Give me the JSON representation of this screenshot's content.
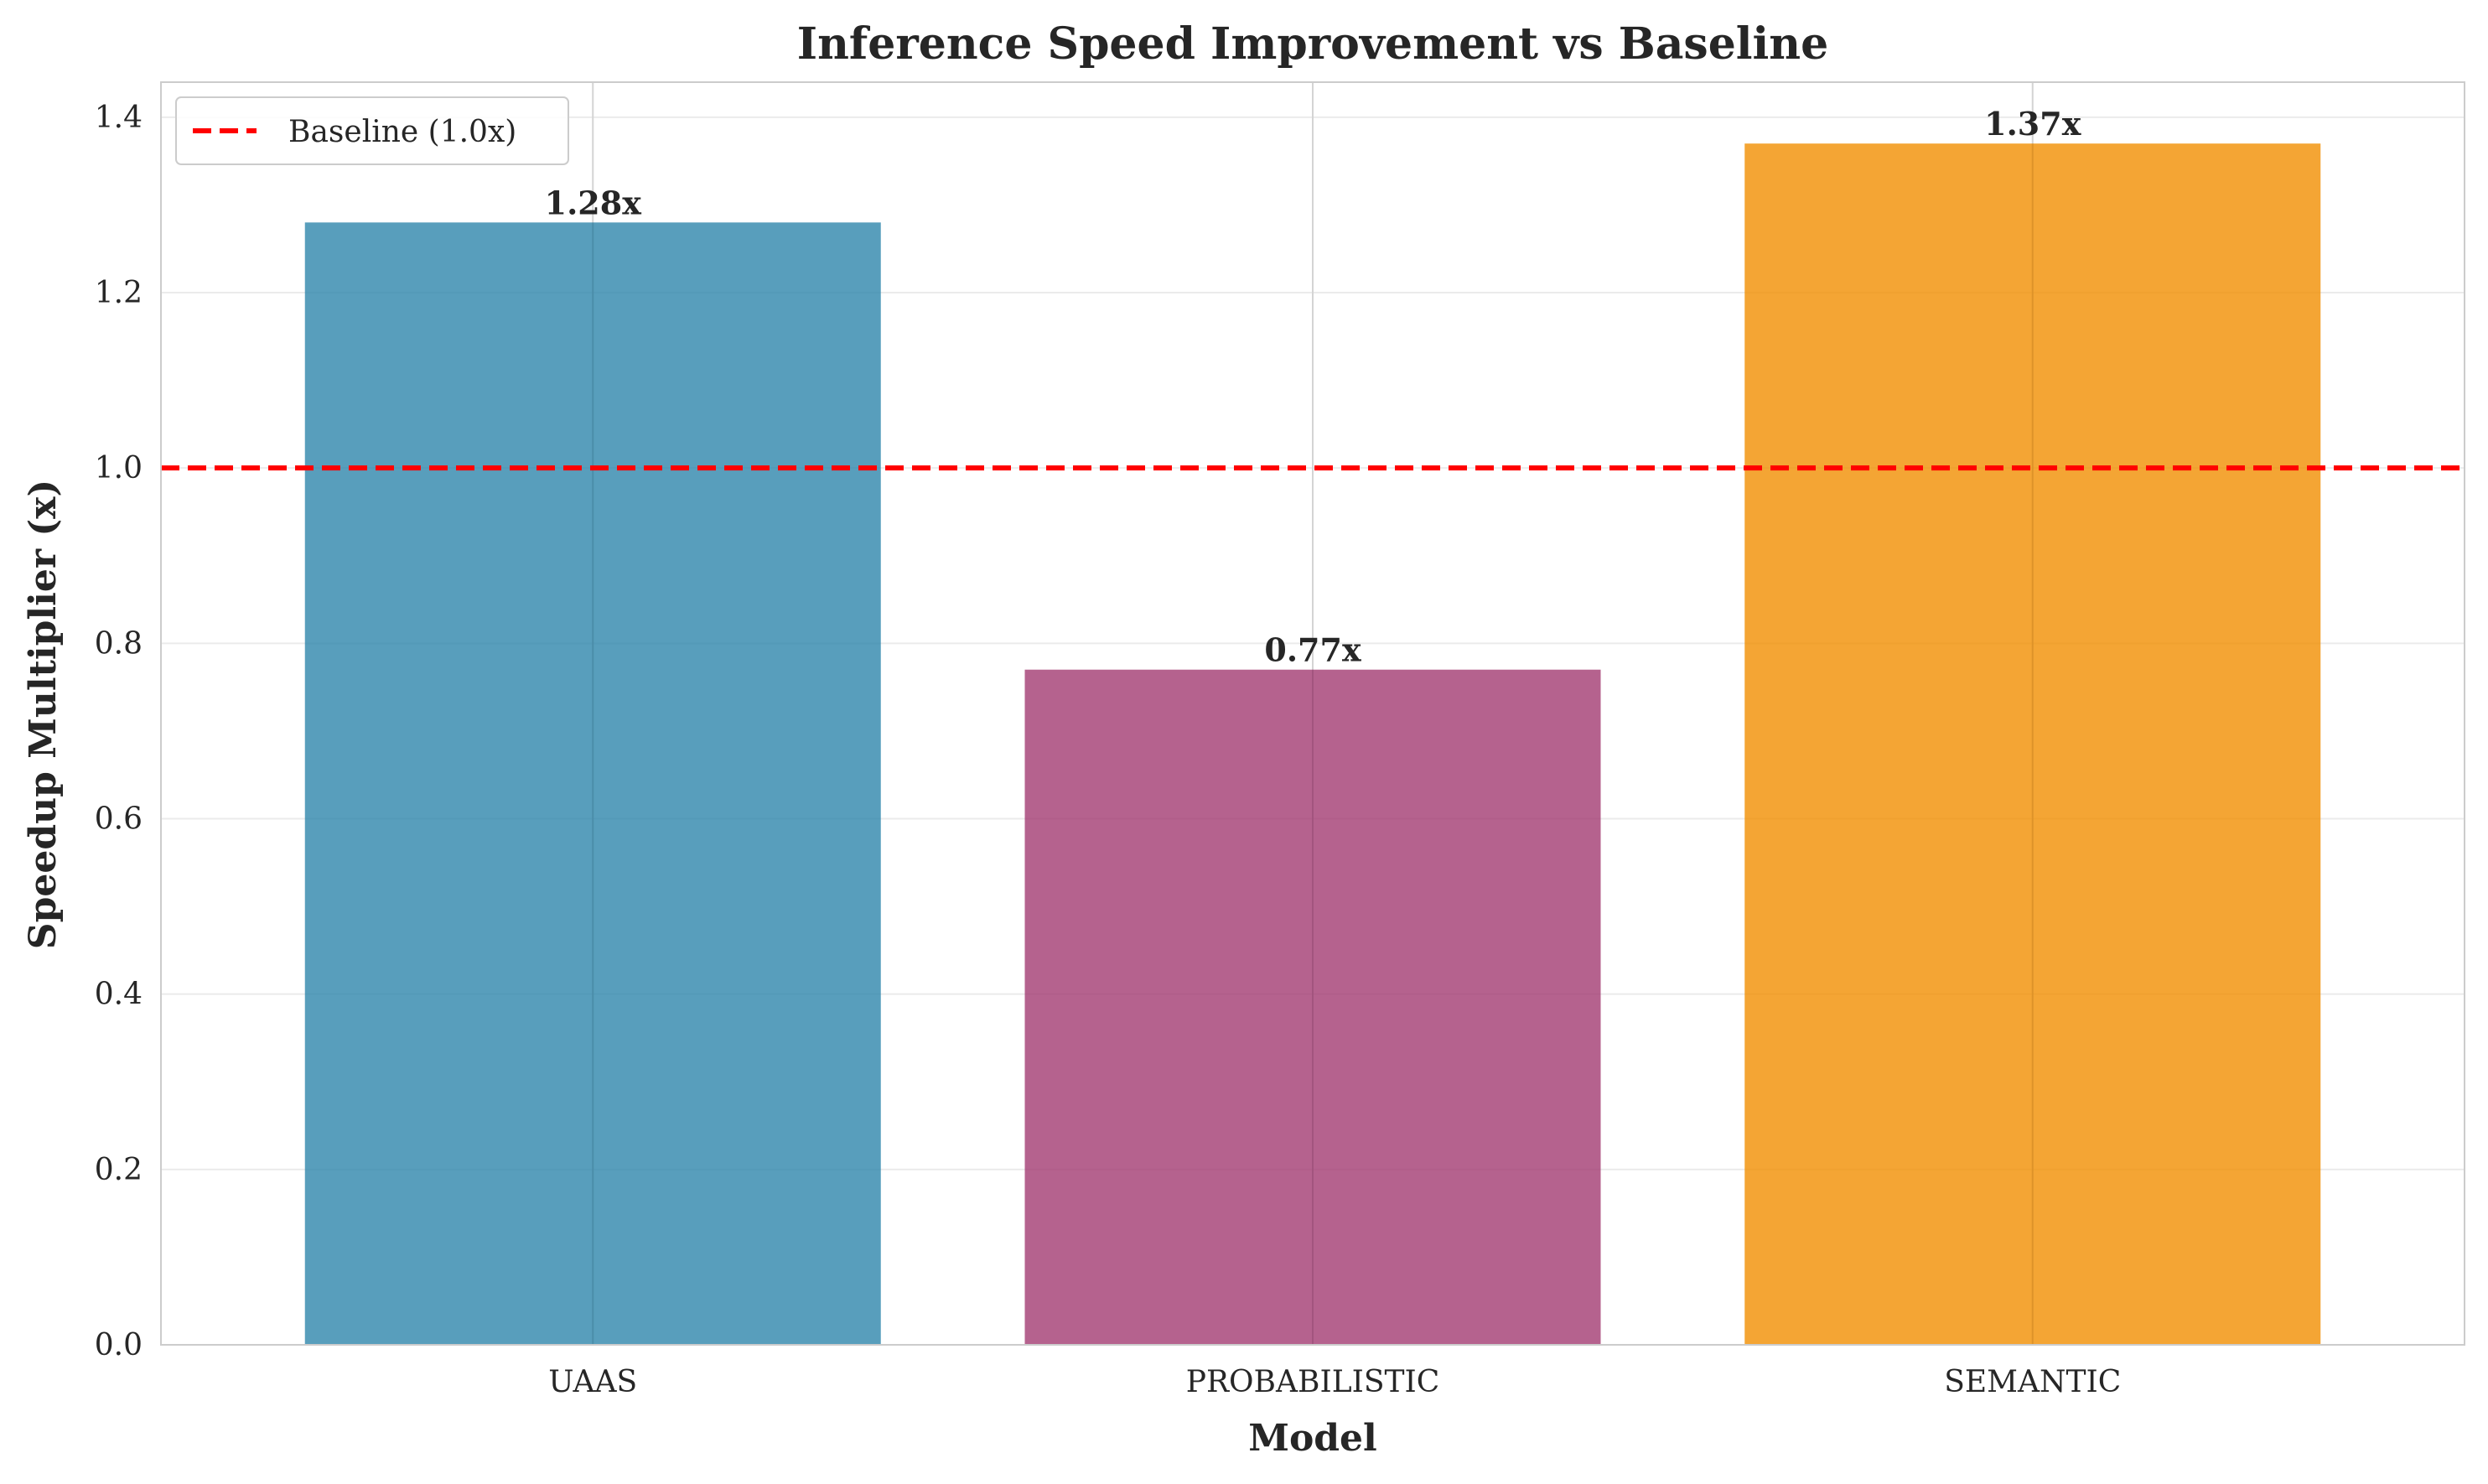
{
  "chart_data": {
    "type": "bar",
    "title": "Inference Speed Improvement vs Baseline",
    "xlabel": "Model",
    "ylabel": "Speedup Multiplier (x)",
    "categories": [
      "UAAS",
      "PROBABILISTIC",
      "SEMANTIC"
    ],
    "values": [
      1.28,
      0.77,
      1.37
    ],
    "value_labels": [
      "1.28x",
      "0.77x",
      "1.37x"
    ],
    "bar_colors": [
      "#2E86AB",
      "#A23B72",
      "#F18F01"
    ],
    "ylim": [
      0,
      1.44
    ],
    "yticks": [
      0.0,
      0.2,
      0.4,
      0.6,
      0.8,
      1.0,
      1.2,
      1.4
    ],
    "ytick_labels": [
      "0.0",
      "0.2",
      "0.4",
      "0.6",
      "0.8",
      "1.0",
      "1.2",
      "1.4"
    ],
    "reference_line": {
      "value": 1.0,
      "label": "Baseline (1.0x)",
      "color": "#FF0000",
      "style": "dashed"
    },
    "grid": true,
    "legend": {
      "placement": "top-left",
      "entries": [
        "Baseline (1.0x)"
      ]
    }
  }
}
